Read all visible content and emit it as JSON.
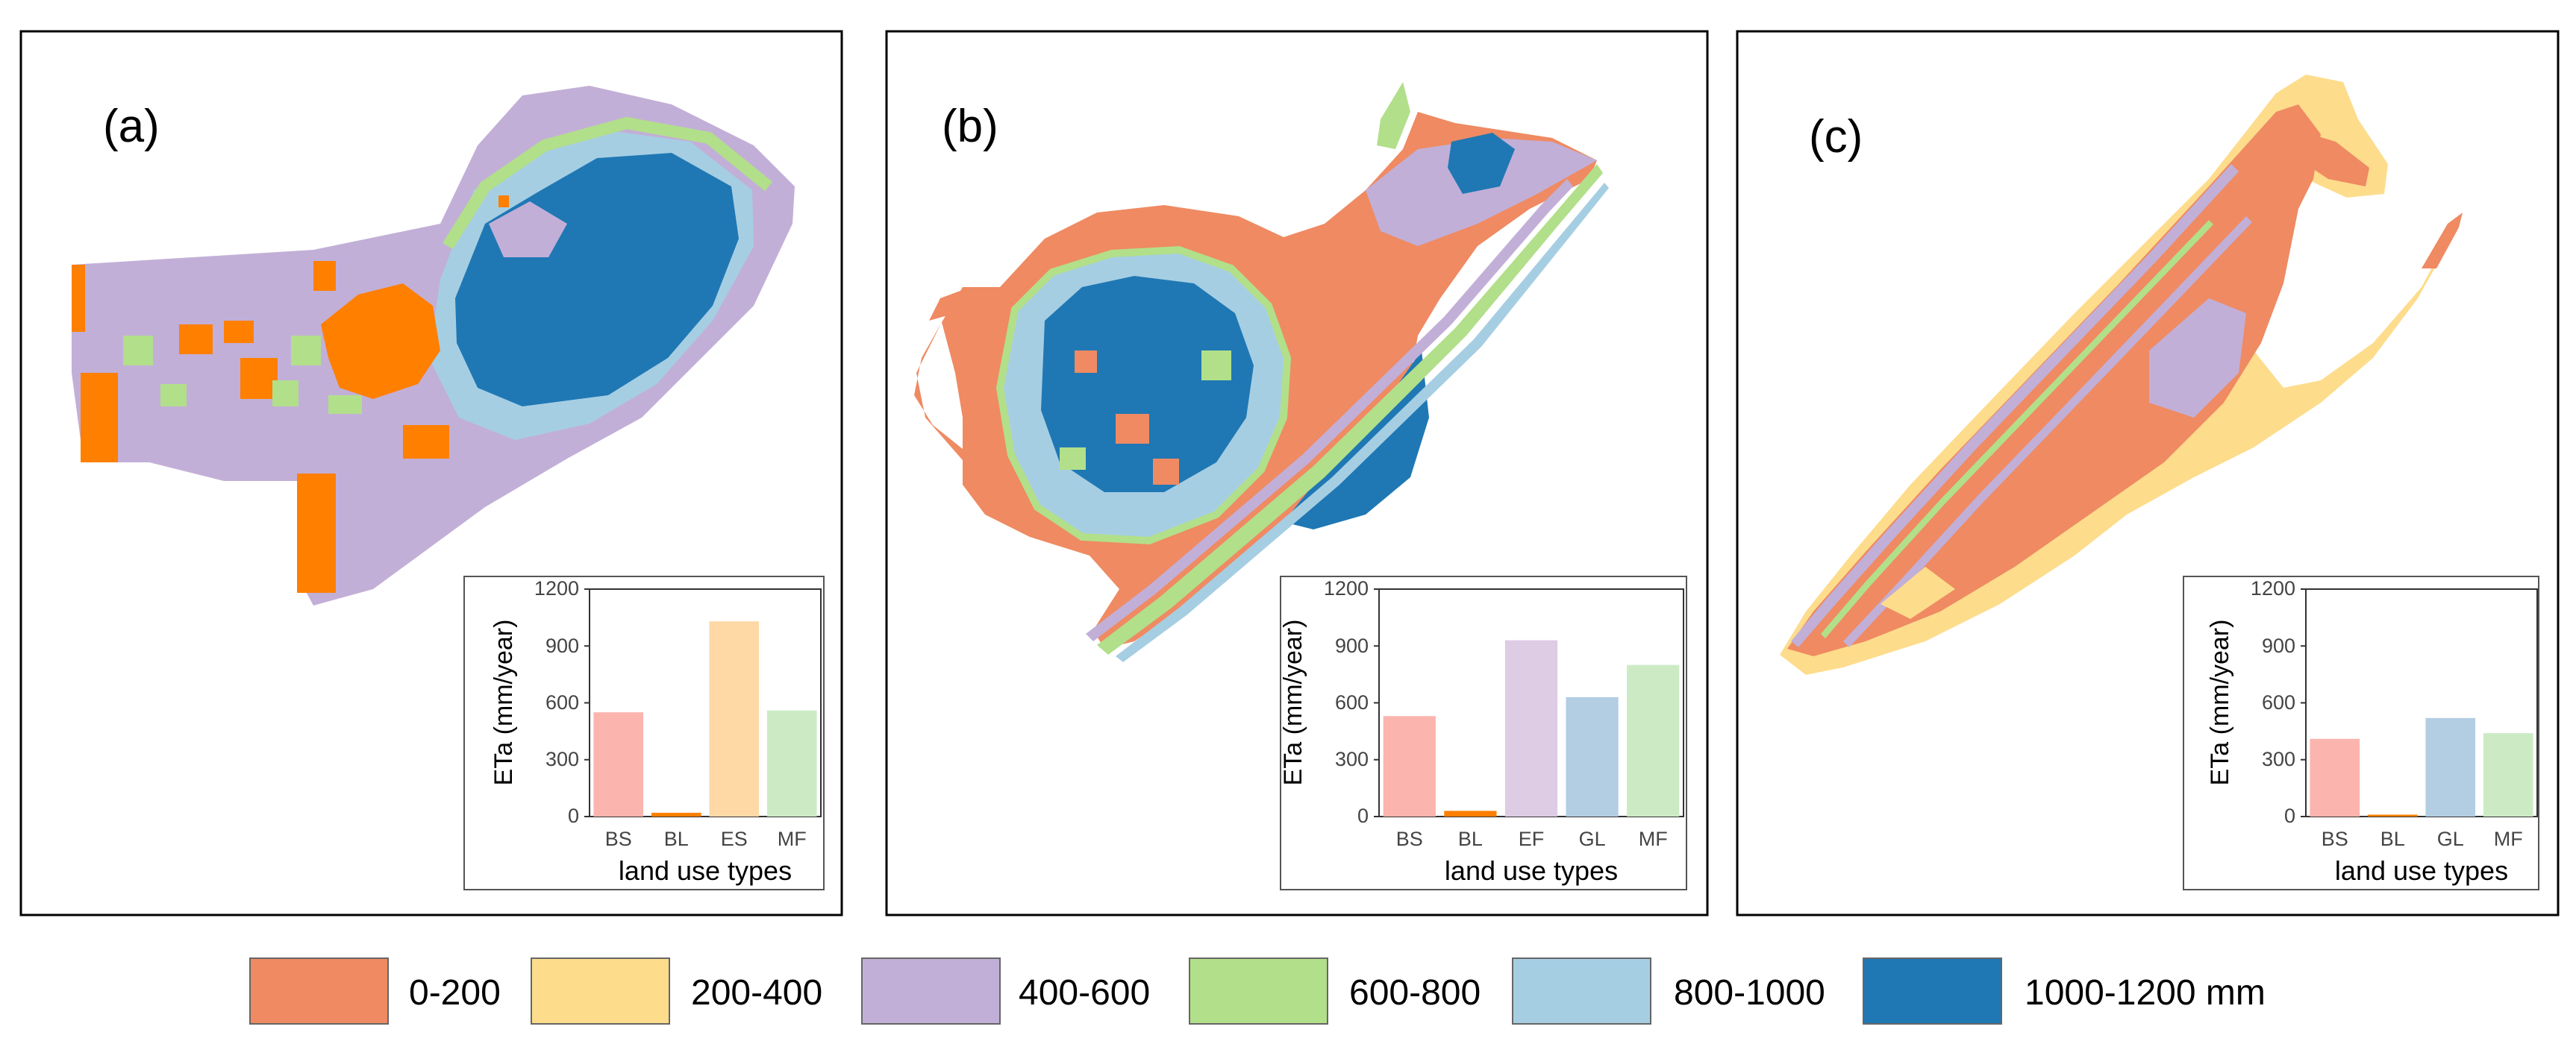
{
  "panels": [
    {
      "label": "(a)"
    },
    {
      "label": "(b)"
    },
    {
      "label": "(c)"
    }
  ],
  "legend": {
    "items": [
      {
        "label": "0-200",
        "color": "#ef8a62"
      },
      {
        "label": "200-400",
        "color": "#fddc8c"
      },
      {
        "label": "400-600",
        "color": "#c2afd7"
      },
      {
        "label": "600-800",
        "color": "#b2df8a"
      },
      {
        "label": "800-1000",
        "color": "#a6cee3"
      },
      {
        "label": "1000-1200 mm",
        "color": "#1f78b4"
      }
    ]
  },
  "chart_data": [
    {
      "type": "bar",
      "panel": "(a)",
      "categories": [
        "BS",
        "BL",
        "ES",
        "MF"
      ],
      "values": [
        550,
        20,
        1030,
        560
      ],
      "colors": [
        "#fbb4ae",
        "#ff7f00",
        "#fed9a6",
        "#ccebc5"
      ],
      "xlabel": "land use types",
      "ylabel": "ETa (mm/year)",
      "ylim": [
        0,
        1200
      ],
      "yticks": [
        "0",
        "300",
        "600",
        "900",
        "1200"
      ],
      "grid": false
    },
    {
      "type": "bar",
      "panel": "(b)",
      "categories": [
        "BS",
        "BL",
        "EF",
        "GL",
        "MF"
      ],
      "values": [
        530,
        30,
        930,
        630,
        800
      ],
      "colors": [
        "#fbb4ae",
        "#ff7f00",
        "#decbe4",
        "#b3cde3",
        "#ccebc5"
      ],
      "xlabel": "land use types",
      "ylabel": "ETa (mm/year)",
      "ylim": [
        0,
        1200
      ],
      "yticks": [
        "0",
        "300",
        "600",
        "900",
        "1200"
      ],
      "grid": false
    },
    {
      "type": "bar",
      "panel": "(c)",
      "categories": [
        "BS",
        "BL",
        "GL",
        "MF"
      ],
      "values": [
        410,
        10,
        520,
        440
      ],
      "colors": [
        "#fbb4ae",
        "#ff7f00",
        "#b3cde3",
        "#ccebc5"
      ],
      "xlabel": "land use types",
      "ylabel": "ETa (mm/year)",
      "ylim": [
        0,
        1200
      ],
      "yticks": [
        "0",
        "300",
        "600",
        "900",
        "1200"
      ],
      "grid": false
    }
  ]
}
